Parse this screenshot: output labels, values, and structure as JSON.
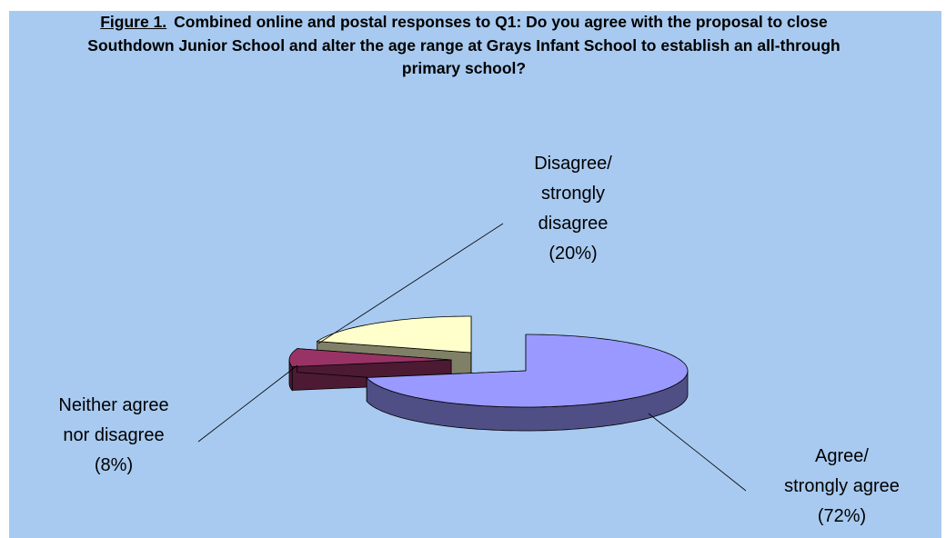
{
  "chart_data": {
    "type": "pie3d",
    "title_label": "Figure 1.",
    "title": "Combined online and postal responses to Q1: Do you agree with the proposal to close Southdown Junior School and alter the age range at Grays Infant School to establish an all-through primary school?",
    "categories": [
      "Agree/ strongly agree",
      "Neither agree nor disagree",
      "Disagree/ strongly disagree"
    ],
    "values": [
      72,
      8,
      20
    ],
    "value_labels": [
      "(72%)",
      "(8%)",
      "(20%)"
    ],
    "colors": [
      "#9999ff",
      "#993366",
      "#ffffcc"
    ],
    "side_colors": [
      "#4f4f86",
      "#4d1a33",
      "#808066"
    ]
  }
}
